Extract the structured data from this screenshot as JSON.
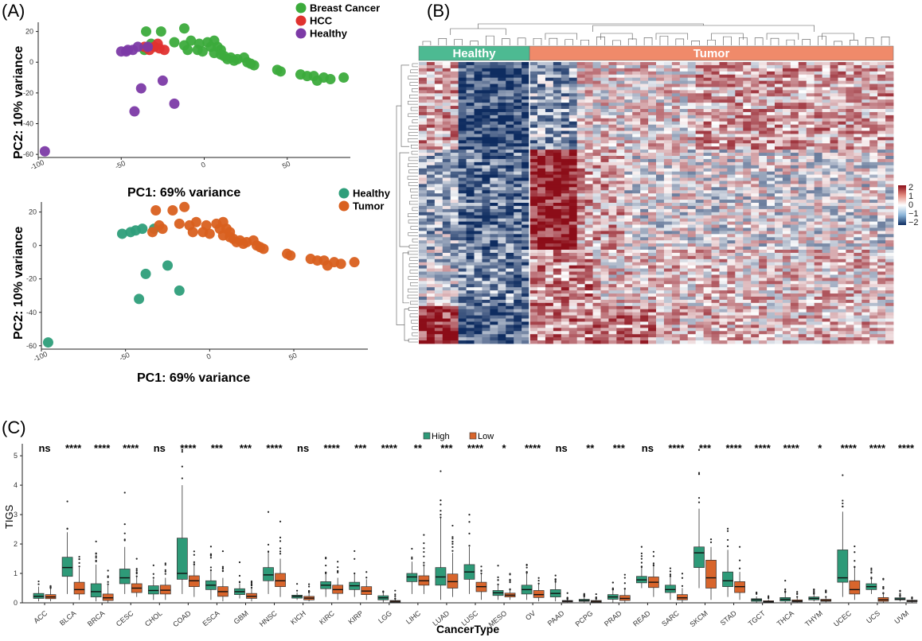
{
  "panels": {
    "A": "(A)",
    "B": "(B)",
    "C": "(C)"
  },
  "colors": {
    "breast": "#3cab3c",
    "hcc": "#e0322f",
    "healthy_purple": "#7c3aa6",
    "healthy_teal": "#2e9e7a",
    "tumor_orange": "#d9601f",
    "box_high": "#2e9a78",
    "box_low": "#d8652c",
    "heat_high": "#8c0d18",
    "heat_mid": "#ffffff",
    "heat_low": "#0e2c60"
  },
  "chart_data": [
    {
      "type": "scatter",
      "id": "pca_top",
      "xlabel": "PC1: 69% variance",
      "ylabel": "PC2: 10% variance",
      "xlim": [
        -100,
        88
      ],
      "ylim": [
        -62,
        26
      ],
      "xticks": [
        -100,
        -50,
        0,
        50
      ],
      "yticks": [
        20,
        0,
        -20,
        -40,
        -60
      ],
      "series": [
        {
          "name": "Breast Cancer",
          "color": "#3cab3c",
          "points": [
            [
              -35,
              20
            ],
            [
              -26,
              20
            ],
            [
              -12,
              22
            ],
            [
              -18,
              13
            ],
            [
              -12,
              11
            ],
            [
              -8,
              14
            ],
            [
              -3,
              12
            ],
            [
              2,
              13
            ],
            [
              4,
              10
            ],
            [
              -10,
              8
            ],
            [
              6,
              14
            ],
            [
              8,
              10
            ],
            [
              10,
              8
            ],
            [
              12,
              4
            ],
            [
              14,
              2
            ],
            [
              16,
              3
            ],
            [
              20,
              2
            ],
            [
              24,
              3
            ],
            [
              26,
              0
            ],
            [
              30,
              -2
            ],
            [
              -4,
              8
            ],
            [
              -1,
              7
            ],
            [
              44,
              -5
            ],
            [
              46,
              -6
            ],
            [
              58,
              -8
            ],
            [
              62,
              -9
            ],
            [
              66,
              -9
            ],
            [
              68,
              -12
            ],
            [
              72,
              -10
            ],
            [
              76,
              -11
            ],
            [
              84,
              -10
            ],
            [
              -32,
              12
            ],
            [
              -30,
              10
            ],
            [
              -36,
              8
            ],
            [
              6,
              6
            ],
            [
              10,
              5
            ],
            [
              18,
              1
            ],
            [
              28,
              -1
            ]
          ]
        },
        {
          "name": "HCC",
          "color": "#e0322f",
          "points": [
            [
              -36,
              10
            ],
            [
              -33,
              8
            ],
            [
              -30,
              10
            ],
            [
              -27,
              9
            ],
            [
              -24,
              8
            ],
            [
              -28,
              12
            ]
          ]
        },
        {
          "name": "Healthy",
          "color": "#7c3aa6",
          "points": [
            [
              -50,
              7
            ],
            [
              -46,
              8
            ],
            [
              -43,
              8
            ],
            [
              -40,
              10
            ],
            [
              -34,
              10
            ],
            [
              -38,
              -17
            ],
            [
              -25,
              -12
            ],
            [
              -18,
              -27
            ],
            [
              -42,
              -32
            ],
            [
              -96,
              -58
            ],
            [
              -47,
              7
            ]
          ]
        }
      ],
      "legend": [
        "Breast Cancer",
        "HCC",
        "Healthy"
      ]
    },
    {
      "type": "scatter",
      "id": "pca_bottom",
      "xlabel": "PC1: 69% variance",
      "ylabel": "PC2: 10% variance",
      "xlim": [
        -100,
        94
      ],
      "ylim": [
        -62,
        26
      ],
      "xticks": [
        -100,
        -50,
        0,
        50
      ],
      "yticks": [
        20,
        0,
        -20,
        -40,
        -60
      ],
      "series": [
        {
          "name": "Healthy",
          "color": "#2e9e7a",
          "points": [
            [
              -52,
              7
            ],
            [
              -47,
              8
            ],
            [
              -44,
              9
            ],
            [
              -40,
              10
            ],
            [
              -33,
              10
            ],
            [
              -38,
              -17
            ],
            [
              -25,
              -12
            ],
            [
              -18,
              -27
            ],
            [
              -42,
              -32
            ],
            [
              -96,
              -58
            ]
          ]
        },
        {
          "name": "Tumor",
          "color": "#d9601f",
          "points": [
            [
              -32,
              21
            ],
            [
              -22,
              21
            ],
            [
              -15,
              23
            ],
            [
              -18,
              13
            ],
            [
              -12,
              12
            ],
            [
              -8,
              14
            ],
            [
              -2,
              12
            ],
            [
              4,
              13
            ],
            [
              6,
              10
            ],
            [
              -10,
              8
            ],
            [
              8,
              14
            ],
            [
              10,
              10
            ],
            [
              12,
              8
            ],
            [
              14,
              4
            ],
            [
              16,
              2
            ],
            [
              18,
              3
            ],
            [
              22,
              2
            ],
            [
              26,
              3
            ],
            [
              28,
              0
            ],
            [
              32,
              -2
            ],
            [
              -4,
              8
            ],
            [
              0,
              7
            ],
            [
              46,
              -5
            ],
            [
              48,
              -6
            ],
            [
              60,
              -8
            ],
            [
              64,
              -9
            ],
            [
              68,
              -9
            ],
            [
              70,
              -12
            ],
            [
              74,
              -10
            ],
            [
              78,
              -11
            ],
            [
              86,
              -10
            ],
            [
              -30,
              12
            ],
            [
              -28,
              10
            ],
            [
              -34,
              8
            ],
            [
              8,
              6
            ],
            [
              12,
              5
            ],
            [
              20,
              1
            ],
            [
              30,
              -1
            ]
          ]
        }
      ],
      "legend": [
        "Healthy",
        "Tumor"
      ]
    },
    {
      "type": "heatmap",
      "id": "heatmap",
      "groups": [
        {
          "label": "Healthy",
          "color": "#4dba92",
          "cols": 14
        },
        {
          "label": "Tumor",
          "color": "#f08a6a",
          "cols": 46
        }
      ],
      "rows": 90,
      "legend": {
        "ticks": [
          "2",
          "1",
          "0",
          "−1",
          "−2"
        ],
        "range": [
          -2,
          2
        ]
      }
    },
    {
      "type": "box",
      "id": "tigs_box",
      "xlabel": "CancerType",
      "ylabel": "TIGS",
      "ylim": [
        0,
        5.3
      ],
      "yticks": [
        "0",
        "1",
        "2",
        "3",
        "4",
        "5"
      ],
      "legend": [
        "High",
        "Low"
      ],
      "categories": [
        "ACC",
        "BLCA",
        "BRCA",
        "CESC",
        "CHOL",
        "COAD",
        "ESCA",
        "GBM",
        "HNSC",
        "KICH",
        "KIRC",
        "KIRP",
        "LGG",
        "LIHC",
        "LUAD",
        "LUSC",
        "MESO",
        "OV",
        "PAAD",
        "PCPG",
        "PRAD",
        "READ",
        "SARC",
        "SKCM",
        "STAD",
        "TGCT",
        "THCA",
        "THYM",
        "UCEC",
        "UCS",
        "UVM"
      ],
      "significance": [
        "ns",
        "****",
        "****",
        "****",
        "ns",
        "****",
        "***",
        "***",
        "****",
        "ns",
        "****",
        "***",
        "****",
        "**",
        "***",
        "****",
        "*",
        "****",
        "ns",
        "**",
        "***",
        "ns",
        "****",
        "***",
        "****",
        "****",
        "****",
        "*",
        "****",
        "****",
        "****"
      ],
      "high": [
        [
          0.05,
          0.15,
          0.22,
          0.32,
          0.55
        ],
        [
          0.3,
          0.9,
          1.2,
          1.55,
          2.4
        ],
        [
          0.05,
          0.2,
          0.38,
          0.65,
          1.3
        ],
        [
          0.3,
          0.65,
          0.85,
          1.15,
          1.9
        ],
        [
          0.1,
          0.3,
          0.42,
          0.58,
          0.8
        ],
        [
          0.3,
          0.8,
          1.0,
          2.2,
          4.0
        ],
        [
          0.1,
          0.45,
          0.6,
          0.75,
          1.1
        ],
        [
          0.15,
          0.28,
          0.38,
          0.48,
          0.65
        ],
        [
          0.3,
          0.75,
          0.95,
          1.2,
          1.7
        ],
        [
          0.1,
          0.16,
          0.22,
          0.26,
          0.35
        ],
        [
          0.2,
          0.48,
          0.6,
          0.72,
          1.0
        ],
        [
          0.2,
          0.45,
          0.58,
          0.7,
          1.0
        ],
        [
          0.02,
          0.1,
          0.17,
          0.24,
          0.35
        ],
        [
          0.3,
          0.72,
          0.88,
          1.0,
          1.4
        ],
        [
          0.1,
          0.6,
          0.88,
          1.2,
          2.9
        ],
        [
          0.3,
          0.8,
          1.05,
          1.3,
          1.9
        ],
        [
          0.1,
          0.25,
          0.34,
          0.42,
          0.6
        ],
        [
          0.1,
          0.3,
          0.45,
          0.6,
          1.0
        ],
        [
          0.05,
          0.2,
          0.32,
          0.45,
          0.7
        ],
        [
          0.0,
          0.05,
          0.08,
          0.12,
          0.2
        ],
        [
          0.0,
          0.12,
          0.2,
          0.28,
          0.45
        ],
        [
          0.5,
          0.68,
          0.78,
          0.9,
          1.2
        ],
        [
          0.1,
          0.35,
          0.45,
          0.6,
          0.9
        ],
        [
          0.5,
          1.2,
          1.7,
          1.9,
          3.2
        ],
        [
          0.2,
          0.55,
          0.75,
          1.05,
          1.8
        ],
        [
          0.0,
          0.05,
          0.1,
          0.14,
          0.22
        ],
        [
          0.0,
          0.06,
          0.12,
          0.18,
          0.35
        ],
        [
          0.05,
          0.1,
          0.15,
          0.2,
          0.3
        ],
        [
          0.2,
          0.7,
          0.85,
          1.8,
          3.1
        ],
        [
          0.3,
          0.45,
          0.55,
          0.65,
          0.8
        ],
        [
          0.05,
          0.1,
          0.13,
          0.17,
          0.22
        ]
      ],
      "low": [
        [
          0.05,
          0.14,
          0.2,
          0.28,
          0.5
        ],
        [
          0.1,
          0.3,
          0.45,
          0.7,
          1.2
        ],
        [
          0.0,
          0.08,
          0.17,
          0.3,
          0.6
        ],
        [
          0.2,
          0.35,
          0.5,
          0.65,
          0.9
        ],
        [
          0.1,
          0.3,
          0.43,
          0.6,
          0.85
        ],
        [
          0.2,
          0.55,
          0.75,
          0.92,
          1.3
        ],
        [
          0.05,
          0.22,
          0.38,
          0.55,
          0.85
        ],
        [
          0.05,
          0.15,
          0.22,
          0.32,
          0.5
        ],
        [
          0.2,
          0.55,
          0.75,
          1.0,
          1.5
        ],
        [
          0.05,
          0.1,
          0.16,
          0.22,
          0.35
        ],
        [
          0.1,
          0.32,
          0.45,
          0.6,
          0.85
        ],
        [
          0.1,
          0.28,
          0.4,
          0.55,
          0.8
        ],
        [
          0.0,
          0.02,
          0.05,
          0.08,
          0.12
        ],
        [
          0.3,
          0.6,
          0.75,
          0.92,
          1.25
        ],
        [
          0.2,
          0.5,
          0.72,
          0.98,
          1.7
        ],
        [
          0.1,
          0.38,
          0.55,
          0.7,
          1.0
        ],
        [
          0.1,
          0.2,
          0.26,
          0.33,
          0.45
        ],
        [
          0.05,
          0.18,
          0.28,
          0.42,
          0.65
        ],
        [
          0.0,
          0.03,
          0.06,
          0.08,
          0.12
        ],
        [
          0.0,
          0.02,
          0.05,
          0.08,
          0.12
        ],
        [
          0.0,
          0.08,
          0.15,
          0.25,
          0.45
        ],
        [
          0.2,
          0.52,
          0.7,
          0.88,
          1.25
        ],
        [
          0.0,
          0.1,
          0.17,
          0.28,
          0.5
        ],
        [
          0.1,
          0.5,
          0.85,
          1.45,
          1.9
        ],
        [
          0.1,
          0.35,
          0.55,
          0.72,
          1.05
        ],
        [
          0.0,
          0.02,
          0.04,
          0.07,
          0.12
        ],
        [
          0.0,
          0.03,
          0.06,
          0.1,
          0.2
        ],
        [
          0.02,
          0.05,
          0.08,
          0.12,
          0.2
        ],
        [
          0.1,
          0.3,
          0.45,
          0.75,
          1.2
        ],
        [
          0.0,
          0.05,
          0.1,
          0.18,
          0.3
        ],
        [
          0.0,
          0.04,
          0.06,
          0.09,
          0.15
        ]
      ]
    }
  ]
}
